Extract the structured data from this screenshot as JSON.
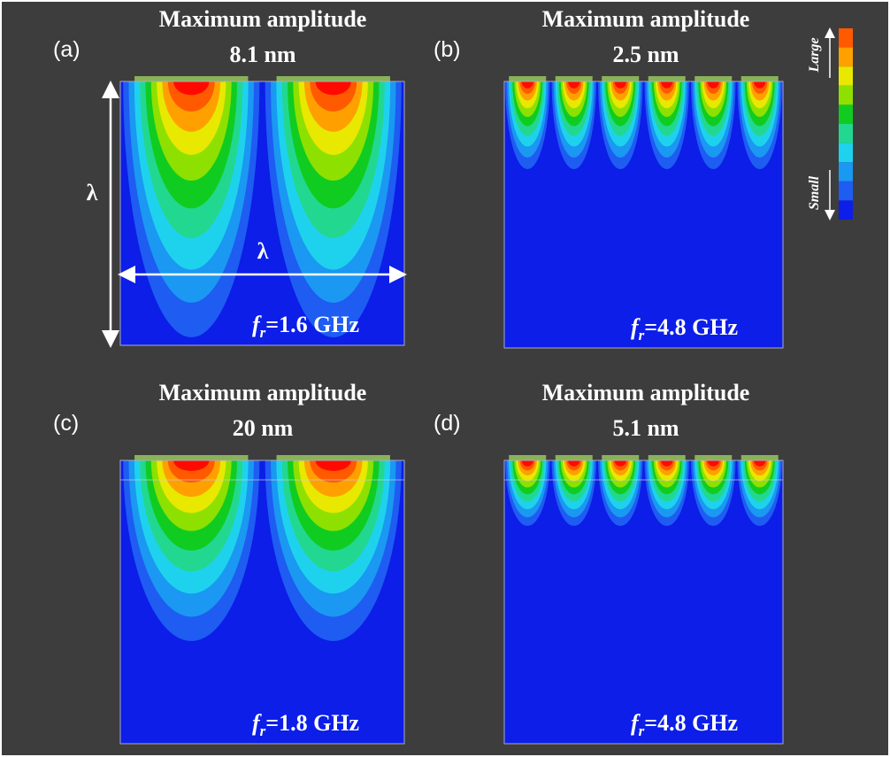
{
  "panels": [
    {
      "label": "(a)",
      "title": "Maximum amplitude",
      "amplitude": "8.1 nm",
      "frequency": {
        "symbol": "f",
        "subscript": "r",
        "value": "=1.6 GHz"
      }
    },
    {
      "label": "(b)",
      "title": "Maximum amplitude",
      "amplitude": "2.5 nm",
      "frequency": {
        "symbol": "f",
        "subscript": "r",
        "value": "=4.8 GHz"
      }
    },
    {
      "label": "(c)",
      "title": "Maximum amplitude",
      "amplitude": "20 nm",
      "frequency": {
        "symbol": "f",
        "subscript": "r",
        "value": "=1.8 GHz"
      }
    },
    {
      "label": "(d)",
      "title": "Maximum amplitude",
      "amplitude": "5.1 nm",
      "frequency": {
        "symbol": "f",
        "subscript": "r",
        "value": "=4.8 GHz"
      }
    }
  ],
  "annotations": {
    "depth": "λ",
    "width": "λ"
  },
  "colorbar": {
    "top": "Large",
    "bottom": "Small"
  }
}
